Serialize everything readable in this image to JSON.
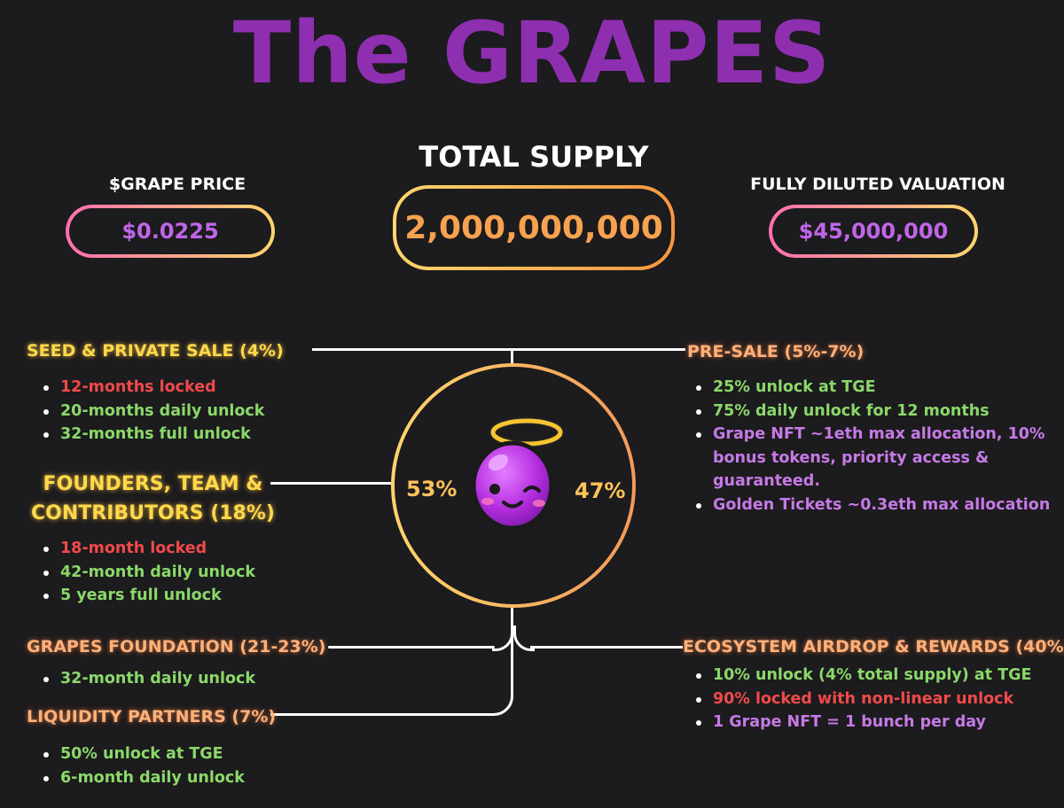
{
  "title": "The GRAPES",
  "stats": {
    "price_label": "$GRAPE PRICE",
    "price_value": "$0.0225",
    "supply_label": "TOTAL SUPPLY",
    "supply_value": "2,000,000,000",
    "fdv_label": "FULLY DILUTED VALUATION",
    "fdv_value": "$45,000,000"
  },
  "split": {
    "left": "53%",
    "right": "47%"
  },
  "sections": {
    "seed": {
      "title": "SEED & PRIVATE SALE (4%)",
      "items": [
        "12-months locked",
        "20-months daily unlock",
        "32-months full unlock"
      ]
    },
    "founders": {
      "title_line1": "FOUNDERS, TEAM &",
      "title_line2": "CONTRIBUTORS (18%)",
      "items": [
        "18-month locked",
        "42-month daily unlock",
        "5 years full unlock"
      ]
    },
    "foundation": {
      "title": "GRAPES FOUNDATION (21-23%)",
      "items": [
        "32-month daily unlock"
      ]
    },
    "liquidity": {
      "title": "LIQUIDITY PARTNERS (7%)",
      "items": [
        "50% unlock at TGE",
        "6-month daily unlock"
      ]
    },
    "presale": {
      "title": "PRE-SALE (5%-7%)",
      "items": [
        "25% unlock at TGE",
        "75% daily unlock for 12 months",
        "Grape NFT ~1eth max allocation, 10% bonus tokens, priority access & guaranteed.",
        "Golden Tickets ~0.3eth max allocation"
      ]
    },
    "ecosystem": {
      "title": "ECOSYSTEM AIRDROP & REWARDS (40%)",
      "items": [
        "10% unlock (4% total supply) at TGE",
        "90% locked with non-linear unlock",
        "1 Grape NFT = 1 bunch per day"
      ]
    }
  },
  "colors": {
    "background": "#1c1b1d",
    "title": "#8e2fb0",
    "green": "#8bd86a",
    "red": "#f04a4a",
    "purple": "#c57ae6",
    "yellow": "#ffd84a",
    "orange": "#ffb07a"
  },
  "icons": {
    "center": "grape-mascot-icon"
  }
}
